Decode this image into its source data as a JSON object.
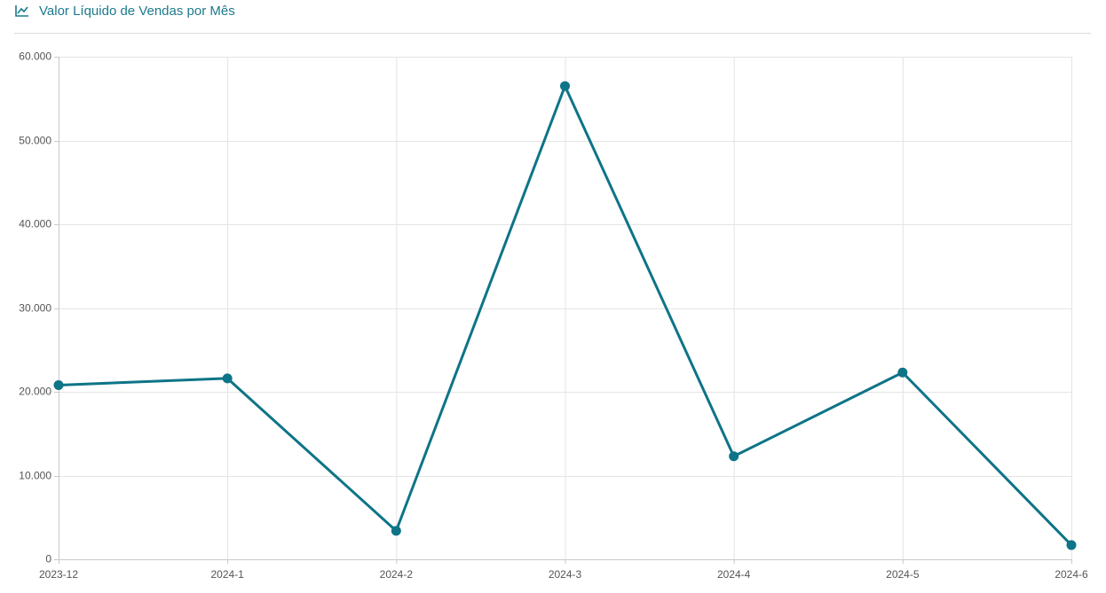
{
  "chart_data": {
    "type": "line",
    "title": "Valor Líquido de Vendas por Mês",
    "categories": [
      "2023-12",
      "2024-1",
      "2024-2",
      "2024-3",
      "2024-4",
      "2024-5",
      "2024-6"
    ],
    "values": [
      20800,
      21600,
      3400,
      56500,
      12300,
      22300,
      1700
    ],
    "color": "#0e7487",
    "ylim": [
      0,
      60000
    ],
    "yticks": [
      0,
      {
        "value": 10000,
        "label": "10.000"
      },
      {
        "value": 20000,
        "label": "20.000"
      },
      {
        "value": 30000,
        "label": "30.000"
      },
      {
        "value": 40000,
        "label": "40.000"
      },
      {
        "value": 50000,
        "label": "50.000"
      },
      {
        "value": 60000,
        "label": "60.000"
      }
    ],
    "grid": true
  }
}
